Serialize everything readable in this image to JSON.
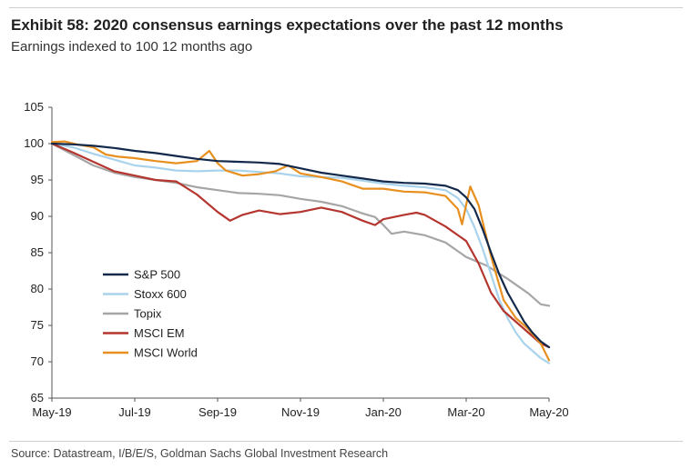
{
  "header": {
    "title": "Exhibit 58: 2020 consensus earnings expectations over the past 12 months",
    "subtitle": "Earnings indexed to 100 12 months ago"
  },
  "footer": {
    "source": "Source: Datastream, I/B/E/S, Goldman Sachs Global Investment Research"
  },
  "chart_data": {
    "type": "line",
    "title": "Exhibit 58: 2020 consensus earnings expectations over the past 12 months",
    "subtitle": "Earnings indexed to 100 12 months ago",
    "xlabel": "",
    "ylabel": "",
    "x_unit": "months since May-19",
    "xlim": [
      0,
      12
    ],
    "ylim": [
      65,
      105
    ],
    "y_ticks": [
      65,
      70,
      75,
      80,
      85,
      90,
      95,
      100,
      105
    ],
    "x_ticks": [
      {
        "label": "May-19",
        "x": 0
      },
      {
        "label": "Jul-19",
        "x": 2
      },
      {
        "label": "Sep-19",
        "x": 4
      },
      {
        "label": "Nov-19",
        "x": 6
      },
      {
        "label": "Jan-20",
        "x": 8
      },
      {
        "label": "Mar-20",
        "x": 10
      },
      {
        "label": "May-20",
        "x": 12
      }
    ],
    "grid": false,
    "legend_position": "lower-left",
    "series": [
      {
        "name": "S&P 500",
        "color": "#13294b",
        "points": [
          [
            0,
            100.0
          ],
          [
            0.5,
            99.9
          ],
          [
            1.0,
            99.7
          ],
          [
            1.5,
            99.4
          ],
          [
            2.0,
            99.0
          ],
          [
            2.5,
            98.7
          ],
          [
            3.0,
            98.3
          ],
          [
            3.5,
            97.9
          ],
          [
            4.0,
            97.6
          ],
          [
            4.5,
            97.5
          ],
          [
            5.0,
            97.4
          ],
          [
            5.5,
            97.2
          ],
          [
            6.0,
            96.6
          ],
          [
            6.5,
            96.0
          ],
          [
            7.0,
            95.6
          ],
          [
            7.5,
            95.2
          ],
          [
            8.0,
            94.8
          ],
          [
            8.5,
            94.6
          ],
          [
            9.0,
            94.5
          ],
          [
            9.5,
            94.2
          ],
          [
            9.8,
            93.6
          ],
          [
            10.0,
            92.6
          ],
          [
            10.2,
            91.0
          ],
          [
            10.4,
            88.2
          ],
          [
            10.6,
            85.0
          ],
          [
            10.8,
            82.0
          ],
          [
            11.0,
            79.5
          ],
          [
            11.2,
            77.5
          ],
          [
            11.4,
            75.5
          ],
          [
            11.6,
            74.0
          ],
          [
            11.8,
            72.8
          ],
          [
            12.0,
            72.0
          ]
        ]
      },
      {
        "name": "Stoxx 600",
        "color": "#a9d3ec",
        "points": [
          [
            0,
            100.0
          ],
          [
            0.5,
            99.5
          ],
          [
            1.0,
            98.6
          ],
          [
            1.5,
            97.8
          ],
          [
            2.0,
            97.0
          ],
          [
            2.5,
            96.7
          ],
          [
            3.0,
            96.3
          ],
          [
            3.5,
            96.2
          ],
          [
            4.0,
            96.3
          ],
          [
            4.5,
            96.3
          ],
          [
            5.0,
            96.1
          ],
          [
            5.5,
            95.9
          ],
          [
            6.0,
            95.5
          ],
          [
            6.5,
            95.4
          ],
          [
            7.0,
            95.3
          ],
          [
            7.5,
            94.9
          ],
          [
            8.0,
            94.5
          ],
          [
            8.5,
            94.2
          ],
          [
            9.0,
            94.0
          ],
          [
            9.5,
            93.6
          ],
          [
            9.8,
            92.5
          ],
          [
            10.0,
            91.0
          ],
          [
            10.2,
            88.5
          ],
          [
            10.4,
            85.5
          ],
          [
            10.6,
            82.0
          ],
          [
            10.8,
            78.5
          ],
          [
            11.0,
            76.0
          ],
          [
            11.2,
            74.0
          ],
          [
            11.4,
            72.5
          ],
          [
            11.6,
            71.5
          ],
          [
            11.8,
            70.5
          ],
          [
            12.0,
            69.8
          ]
        ]
      },
      {
        "name": "Topix",
        "color": "#a6a6a6",
        "points": [
          [
            0,
            100.0
          ],
          [
            0.5,
            98.5
          ],
          [
            1.0,
            97.0
          ],
          [
            1.5,
            96.0
          ],
          [
            2.0,
            95.4
          ],
          [
            2.5,
            95.0
          ],
          [
            3.0,
            94.6
          ],
          [
            3.5,
            94.0
          ],
          [
            4.0,
            93.6
          ],
          [
            4.5,
            93.2
          ],
          [
            5.0,
            93.1
          ],
          [
            5.5,
            92.9
          ],
          [
            6.0,
            92.4
          ],
          [
            6.5,
            92.0
          ],
          [
            7.0,
            91.4
          ],
          [
            7.5,
            90.4
          ],
          [
            7.8,
            89.9
          ],
          [
            8.0,
            88.8
          ],
          [
            8.2,
            87.6
          ],
          [
            8.5,
            87.9
          ],
          [
            9.0,
            87.4
          ],
          [
            9.5,
            86.4
          ],
          [
            10.0,
            84.4
          ],
          [
            10.5,
            83.2
          ],
          [
            11.0,
            81.4
          ],
          [
            11.5,
            79.4
          ],
          [
            11.8,
            77.9
          ],
          [
            12.0,
            77.7
          ]
        ]
      },
      {
        "name": "MSCI EM",
        "color": "#b5352f",
        "points": [
          [
            0,
            100.0
          ],
          [
            0.5,
            98.8
          ],
          [
            1.0,
            97.5
          ],
          [
            1.5,
            96.2
          ],
          [
            2.0,
            95.6
          ],
          [
            2.5,
            95.0
          ],
          [
            3.0,
            94.8
          ],
          [
            3.5,
            93.0
          ],
          [
            4.0,
            90.6
          ],
          [
            4.3,
            89.4
          ],
          [
            4.6,
            90.2
          ],
          [
            5.0,
            90.8
          ],
          [
            5.5,
            90.3
          ],
          [
            6.0,
            90.6
          ],
          [
            6.5,
            91.2
          ],
          [
            7.0,
            90.6
          ],
          [
            7.5,
            89.4
          ],
          [
            7.8,
            88.8
          ],
          [
            8.0,
            89.6
          ],
          [
            8.5,
            90.2
          ],
          [
            8.8,
            90.5
          ],
          [
            9.0,
            90.2
          ],
          [
            9.5,
            88.6
          ],
          [
            10.0,
            86.6
          ],
          [
            10.3,
            83.5
          ],
          [
            10.6,
            79.5
          ],
          [
            10.9,
            77.0
          ],
          [
            11.2,
            75.5
          ],
          [
            11.5,
            74.0
          ],
          [
            11.8,
            72.5
          ],
          [
            12.0,
            72.0
          ]
        ]
      },
      {
        "name": "MSCI World",
        "color": "#e8901f",
        "points": [
          [
            0,
            100.2
          ],
          [
            0.3,
            100.3
          ],
          [
            0.6,
            99.9
          ],
          [
            1.0,
            99.5
          ],
          [
            1.3,
            98.5
          ],
          [
            1.6,
            98.2
          ],
          [
            2.0,
            98.0
          ],
          [
            2.5,
            97.6
          ],
          [
            3.0,
            97.3
          ],
          [
            3.5,
            97.6
          ],
          [
            3.8,
            99.0
          ],
          [
            4.0,
            97.3
          ],
          [
            4.2,
            96.3
          ],
          [
            4.6,
            95.6
          ],
          [
            5.0,
            95.8
          ],
          [
            5.4,
            96.2
          ],
          [
            5.7,
            97.0
          ],
          [
            6.0,
            95.9
          ],
          [
            6.5,
            95.4
          ],
          [
            7.0,
            94.8
          ],
          [
            7.5,
            93.8
          ],
          [
            8.0,
            93.8
          ],
          [
            8.5,
            93.4
          ],
          [
            9.0,
            93.3
          ],
          [
            9.5,
            92.8
          ],
          [
            9.8,
            91.0
          ],
          [
            9.9,
            88.9
          ],
          [
            10.0,
            91.6
          ],
          [
            10.1,
            94.1
          ],
          [
            10.3,
            91.5
          ],
          [
            10.6,
            84.5
          ],
          [
            10.9,
            78.5
          ],
          [
            11.2,
            76.0
          ],
          [
            11.5,
            74.5
          ],
          [
            11.8,
            72.5
          ],
          [
            12.0,
            70.2
          ]
        ]
      }
    ]
  }
}
